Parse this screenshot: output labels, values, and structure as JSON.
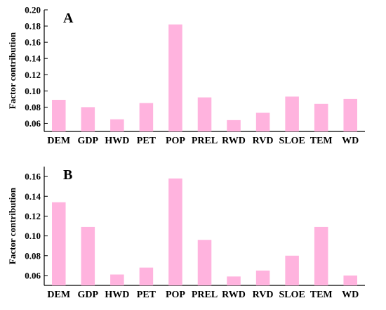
{
  "chart_data": [
    {
      "type": "bar",
      "panel_label": "A",
      "ylabel": "Factor contribution",
      "xlabel": "",
      "categories": [
        "DEM",
        "GDP",
        "HWD",
        "PET",
        "POP",
        "PREL",
        "RWD",
        "RVD",
        "SLOE",
        "TEM",
        "WD"
      ],
      "values": [
        0.089,
        0.08,
        0.065,
        0.085,
        0.182,
        0.092,
        0.064,
        0.073,
        0.093,
        0.084,
        0.09
      ],
      "yticks": [
        "0.06",
        "0.08",
        "0.10",
        "0.12",
        "0.14",
        "0.16",
        "0.18",
        "0.20"
      ],
      "ylim": [
        0.05,
        0.2
      ],
      "bar_color": "#ffb3de",
      "grid": false,
      "legend": "none"
    },
    {
      "type": "bar",
      "panel_label": "B",
      "ylabel": "Factor contribution",
      "xlabel": "",
      "categories": [
        "DEM",
        "GDP",
        "HWD",
        "PET",
        "POP",
        "PREL",
        "RWD",
        "RVD",
        "SLOE",
        "TEM",
        "WD"
      ],
      "values": [
        0.134,
        0.109,
        0.061,
        0.068,
        0.158,
        0.096,
        0.059,
        0.065,
        0.08,
        0.109,
        0.06
      ],
      "yticks": [
        "0.06",
        "0.08",
        "0.10",
        "0.12",
        "0.14",
        "0.16"
      ],
      "ylim": [
        0.05,
        0.17
      ],
      "bar_color": "#ffb3de",
      "grid": false,
      "legend": "none"
    }
  ]
}
